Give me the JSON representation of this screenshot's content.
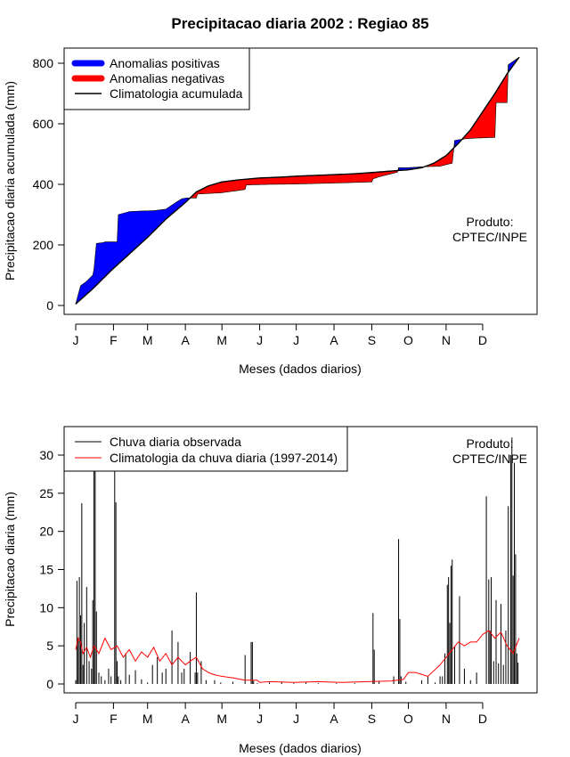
{
  "colors": {
    "positive": "#0000ff",
    "negative": "#ff0000",
    "observed": "#000000",
    "climatology_daily": "#ff0000"
  },
  "chart_data": [
    {
      "type": "area",
      "title": "Precipitacao diaria 2002 : Regiao 85",
      "xlabel": "Meses (dados diarios)",
      "ylabel": "Precipitacao diaria acumulada (mm)",
      "xlim": [
        0,
        365
      ],
      "ylim": [
        0,
        820
      ],
      "month_ticks": {
        "labels": [
          "J",
          "F",
          "M",
          "A",
          "M",
          "J",
          "J",
          "A",
          "S",
          "O",
          "N",
          "D"
        ],
        "days": [
          1,
          32,
          60,
          91,
          121,
          152,
          182,
          213,
          244,
          274,
          305,
          335
        ]
      },
      "y_ticks": [
        0,
        200,
        400,
        600,
        800
      ],
      "legend": {
        "position": "top-left",
        "entries": [
          "Anomalias positivas",
          "Anomalias negativas",
          "Climatologia acumulada"
        ]
      },
      "annotation": [
        "Produto:",
        "CPTEC/INPE"
      ],
      "climatology_cumulative": {
        "x": [
          1,
          15,
          30,
          45,
          60,
          75,
          91,
          100,
          110,
          121,
          135,
          152,
          170,
          182,
          200,
          213,
          230,
          244,
          260,
          274,
          285,
          295,
          305,
          315,
          325,
          335,
          345,
          355,
          365
        ],
        "y": [
          5,
          55,
          115,
          170,
          225,
          285,
          340,
          375,
          395,
          408,
          415,
          421,
          424,
          427,
          430,
          432,
          435,
          439,
          444,
          448,
          455,
          470,
          495,
          535,
          580,
          640,
          700,
          765,
          820
        ]
      },
      "observed_cumulative": {
        "x": [
          1,
          5,
          10,
          15,
          16,
          18,
          24,
          25,
          35,
          36,
          45,
          55,
          65,
          75,
          85,
          88,
          92,
          100,
          101,
          120,
          135,
          140,
          141,
          160,
          180,
          200,
          220,
          244,
          245,
          250,
          260,
          265,
          266,
          274,
          285,
          286,
          300,
          310,
          312,
          320,
          325,
          345,
          346,
          355,
          356,
          365
        ],
        "y": [
          5,
          65,
          80,
          100,
          120,
          205,
          208,
          210,
          210,
          300,
          310,
          312,
          313,
          318,
          345,
          352,
          355,
          355,
          368,
          372,
          380,
          383,
          398,
          400,
          401,
          403,
          405,
          408,
          418,
          425,
          435,
          440,
          455,
          455,
          458,
          458,
          460,
          470,
          545,
          550,
          552,
          555,
          670,
          670,
          795,
          820
        ]
      }
    },
    {
      "type": "bar",
      "title": "",
      "xlabel": "Meses (dados diarios)",
      "ylabel": "Precipitacao diaria (mm)",
      "xlim": [
        0,
        365
      ],
      "ylim": [
        0,
        32
      ],
      "month_ticks": {
        "labels": [
          "J",
          "F",
          "M",
          "A",
          "M",
          "J",
          "J",
          "A",
          "S",
          "O",
          "N",
          "D"
        ],
        "days": [
          1,
          32,
          60,
          91,
          121,
          152,
          182,
          213,
          244,
          274,
          305,
          335
        ]
      },
      "y_ticks": [
        0,
        5,
        10,
        15,
        20,
        25,
        30
      ],
      "legend": {
        "position": "top-left",
        "entries": [
          "Chuva diaria observada",
          "Climatologia da chuva diaria (1997-2014)"
        ]
      },
      "annotation": [
        "Produto:",
        "CPTEC/INPE"
      ],
      "observed_daily": {
        "x": [
          1,
          2,
          3,
          4,
          5,
          6,
          7,
          8,
          10,
          12,
          14,
          15,
          16,
          17,
          18,
          20,
          22,
          25,
          28,
          30,
          33,
          34,
          35,
          36,
          38,
          42,
          45,
          50,
          55,
          60,
          64,
          68,
          72,
          75,
          80,
          85,
          88,
          90,
          95,
          99,
          100,
          101,
          104,
          108,
          115,
          120,
          130,
          140,
          145,
          146,
          147,
          150,
          160,
          170,
          180,
          190,
          200,
          215,
          230,
          245,
          246,
          250,
          262,
          266,
          267,
          268,
          272,
          285,
          290,
          296,
          300,
          302,
          304,
          306,
          307,
          308,
          309,
          310,
          312,
          316,
          320,
          325,
          330,
          338,
          340,
          341,
          342,
          344,
          346,
          348,
          350,
          352,
          354,
          356,
          358,
          359,
          360,
          361,
          362,
          363,
          364
        ],
        "y": [
          0.5,
          13.5,
          6,
          14,
          9,
          23.7,
          2.5,
          8,
          12.7,
          3,
          2,
          11,
          28,
          28,
          9.5,
          1.5,
          1,
          0.5,
          2,
          1,
          28,
          23.8,
          3,
          1,
          0.5,
          4,
          1.2,
          1.8,
          0.6,
          0.2,
          2.5,
          3.5,
          1.5,
          2,
          7,
          5.5,
          1.5,
          2,
          4.2,
          1.5,
          12,
          1.5,
          3,
          0.5,
          0.5,
          0.2,
          0.3,
          3.8,
          5.5,
          5.5,
          0.4,
          0.1,
          0.2,
          0.3,
          0.1,
          0.2,
          0.1,
          0.1,
          0.1,
          9.3,
          4.5,
          0.3,
          1,
          19,
          8.5,
          1,
          0.3,
          0.5,
          1,
          0.2,
          1,
          1,
          4,
          13,
          14,
          8,
          15.5,
          16.3,
          5,
          11.5,
          2,
          0.5,
          1.5,
          24.6,
          13.7,
          7,
          14,
          3,
          11,
          2.7,
          10.5,
          2.5,
          7,
          23.3,
          30,
          32.3,
          14.2,
          29,
          17,
          4,
          2.8
        ]
      },
      "climatology_daily": {
        "x": [
          1,
          3,
          5,
          7,
          10,
          13,
          16,
          20,
          25,
          30,
          35,
          40,
          45,
          50,
          55,
          60,
          65,
          70,
          75,
          80,
          85,
          91,
          95,
          100,
          105,
          110,
          115,
          121,
          130,
          140,
          150,
          152,
          160,
          180,
          200,
          220,
          240,
          260,
          270,
          274,
          280,
          290,
          300,
          305,
          310,
          315,
          320,
          325,
          330,
          335,
          340,
          345,
          350,
          355,
          360,
          365
        ],
        "y": [
          4.5,
          6,
          5.5,
          4,
          4.8,
          3.5,
          5,
          4,
          6,
          4.5,
          5,
          3.5,
          4.5,
          3,
          4.2,
          3.5,
          4.8,
          3,
          4,
          2.5,
          3.5,
          2.5,
          3,
          3.5,
          2,
          1.5,
          1.2,
          1,
          0.8,
          0.5,
          0.5,
          0.2,
          0.3,
          0.2,
          0.3,
          0.2,
          0.3,
          0.4,
          0.6,
          1.5,
          1.5,
          1,
          2.5,
          3.5,
          4.5,
          5.5,
          5,
          5.5,
          5.5,
          6.5,
          7,
          6,
          6.8,
          5,
          4,
          6
        ]
      }
    }
  ]
}
